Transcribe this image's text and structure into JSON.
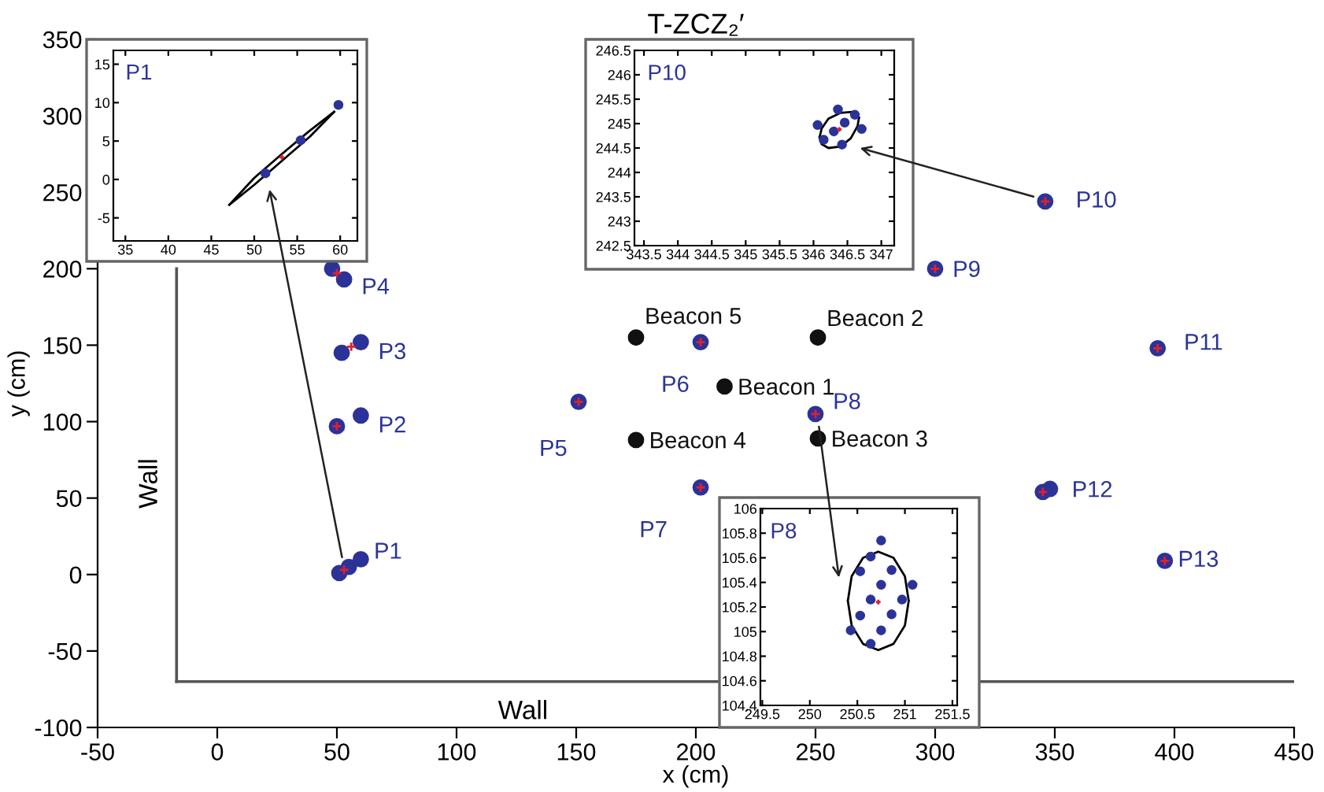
{
  "chart_data": [
    {
      "type": "scatter",
      "title": "T-ZCZ₂′",
      "xlabel": "x (cm)",
      "ylabel": "y (cm)",
      "xlim": [
        -50,
        450
      ],
      "ylim": [
        -100,
        350
      ],
      "xticks": [
        -50,
        0,
        50,
        100,
        150,
        200,
        250,
        300,
        350,
        400,
        450
      ],
      "yticks": [
        -100,
        -50,
        0,
        50,
        100,
        150,
        200,
        250,
        300,
        350
      ],
      "series": [
        {
          "type": "line",
          "name": "Wall",
          "color": "#555555",
          "marker": "none",
          "x": [
            -17,
            -17
          ],
          "values": [
            200,
            -70
          ]
        },
        {
          "type": "line",
          "name": "Wall",
          "color": "#555555",
          "marker": "none",
          "x": [
            -17,
            450
          ],
          "values": [
            -70,
            -70
          ]
        },
        {
          "type": "scatter",
          "color": "#2b3399",
          "marker": "circle",
          "x": [
            51,
            55,
            60,
            50,
            60,
            52,
            60,
            48,
            53,
            151,
            202,
            202,
            250,
            300,
            346,
            393,
            345,
            348,
            396
          ],
          "values": [
            1,
            5,
            10,
            97,
            104,
            145,
            152,
            200,
            193,
            113,
            152,
            57,
            105,
            200,
            244,
            148,
            54,
            56,
            9
          ]
        },
        {
          "type": "scatter",
          "color": "#e0202a",
          "marker": "cross",
          "x": [
            53,
            50,
            56,
            50,
            151,
            202,
            202,
            250,
            300,
            346,
            393,
            345,
            396
          ],
          "values": [
            3,
            97,
            149,
            197,
            113,
            152,
            57,
            105,
            200,
            244,
            148,
            54,
            9
          ]
        },
        {
          "type": "scatter",
          "color": "#111111",
          "marker": "circle",
          "x": [
            212,
            251,
            251,
            175,
            175
          ],
          "values": [
            123,
            155,
            89,
            88,
            155
          ]
        }
      ],
      "annotations": [
        {
          "text": "P1",
          "x": 60,
          "y": 10
        },
        {
          "text": "P2",
          "x": 60,
          "y": 104
        },
        {
          "text": "P3",
          "x": 60,
          "y": 152
        },
        {
          "text": "P4",
          "x": 53,
          "y": 193
        },
        {
          "text": "P5",
          "x": 151,
          "y": 113
        },
        {
          "text": "P6",
          "x": 202,
          "y": 152
        },
        {
          "text": "P7",
          "x": 202,
          "y": 57
        },
        {
          "text": "P8",
          "x": 250,
          "y": 105
        },
        {
          "text": "P9",
          "x": 300,
          "y": 200
        },
        {
          "text": "P10",
          "x": 346,
          "y": 244
        },
        {
          "text": "P11",
          "x": 393,
          "y": 148
        },
        {
          "text": "P12",
          "x": 348,
          "y": 56
        },
        {
          "text": "P13",
          "x": 396,
          "y": 9
        },
        {
          "text": "Beacon 1",
          "x": 212,
          "y": 123
        },
        {
          "text": "Beacon 2",
          "x": 251,
          "y": 155
        },
        {
          "text": "Beacon 3",
          "x": 251,
          "y": 89
        },
        {
          "text": "Beacon 4",
          "x": 175,
          "y": 88
        },
        {
          "text": "Beacon 5",
          "x": 175,
          "y": 155
        }
      ]
    },
    {
      "type": "scatter",
      "title": "P1",
      "xlim": [
        33.6,
        62
      ],
      "ylim": [
        -8,
        16.8
      ],
      "xticks": [
        35,
        40,
        45,
        50,
        55,
        60
      ],
      "yticks": [
        -5,
        0,
        5,
        10,
        15
      ],
      "series": [
        {
          "type": "line",
          "color": "#000000",
          "marker": "none",
          "x": [
            47.1,
            50,
            53.2,
            56.3,
            59.3
          ],
          "values": [
            -3.3,
            0.2,
            3.3,
            6.2,
            8.8
          ]
        },
        {
          "type": "line",
          "color": "#000000",
          "marker": "none",
          "x": [
            47.1,
            50,
            53.2,
            56.5,
            59.3
          ],
          "values": [
            -3.3,
            -0.7,
            2.4,
            5.6,
            8.8
          ]
        },
        {
          "type": "scatter",
          "color": "#2b3399",
          "marker": "circle",
          "x": [
            51.3,
            55.4,
            59.8
          ],
          "values": [
            0.8,
            5.1,
            9.7
          ]
        },
        {
          "type": "scatter",
          "color": "#e0202a",
          "marker": "cross",
          "x": [
            53.2
          ],
          "values": [
            2.9
          ]
        }
      ]
    },
    {
      "type": "scatter",
      "title": "P10",
      "xlim": [
        343.36,
        347.19
      ],
      "ylim": [
        242.5,
        246.5
      ],
      "xticks": [
        343.5,
        344,
        344.5,
        345,
        345.5,
        346,
        346.5,
        347
      ],
      "yticks": [
        242.5,
        243,
        243.5,
        244,
        244.5,
        245,
        245.5,
        246,
        246.5
      ],
      "series": [
        {
          "type": "line",
          "color": "#000000",
          "marker": "none",
          "x": [
            346.09,
            346.12,
            346.22,
            346.4,
            346.57,
            346.67
          ],
          "values": [
            244.72,
            244.9,
            245.1,
            245.22,
            245.24,
            245.12
          ]
        },
        {
          "type": "line",
          "color": "#000000",
          "marker": "none",
          "x": [
            346.09,
            346.12,
            346.22,
            346.4,
            346.55,
            346.65,
            346.67
          ],
          "values": [
            244.72,
            244.58,
            244.5,
            244.53,
            244.7,
            244.95,
            245.12
          ]
        },
        {
          "type": "scatter",
          "color": "#2b3399",
          "marker": "circle",
          "x": [
            346.3,
            346.46,
            346.61,
            346.71,
            346.42,
            346.15,
            346.06,
            346.36
          ],
          "values": [
            244.84,
            245.02,
            245.18,
            244.89,
            244.57,
            244.67,
            244.97,
            245.29
          ]
        },
        {
          "type": "scatter",
          "color": "#e0202a",
          "marker": "cross",
          "x": [
            346.38
          ],
          "values": [
            244.88
          ]
        }
      ]
    },
    {
      "type": "scatter",
      "title": "P8",
      "xlim": [
        249.48,
        251.55
      ],
      "ylim": [
        104.4,
        106
      ],
      "xticks": [
        249.5,
        250,
        250.5,
        251,
        251.5
      ],
      "yticks": [
        104.4,
        104.6,
        104.8,
        105,
        105.2,
        105.4,
        105.6,
        105.8,
        106
      ],
      "series": [
        {
          "type": "line",
          "color": "#000000",
          "marker": "none",
          "x": [
            250.4,
            250.44,
            250.56,
            250.72,
            250.88,
            251.0,
            251.04,
            null,
            250.4,
            250.44,
            250.56,
            250.72,
            250.88,
            251.0,
            251.04
          ],
          "values": [
            105.25,
            105.45,
            105.6,
            105.65,
            105.6,
            105.45,
            105.25,
            null,
            105.25,
            105.05,
            104.9,
            104.85,
            104.9,
            105.05,
            105.25
          ]
        },
        {
          "type": "scatter",
          "color": "#2b3399",
          "marker": "circle",
          "x": [
            250.64,
            250.53,
            250.86,
            250.75,
            250.64,
            250.97,
            250.86,
            250.53,
            250.75,
            250.43,
            250.64,
            250.75,
            251.08
          ],
          "values": [
            105.61,
            105.49,
            105.5,
            105.38,
            105.26,
            105.26,
            105.14,
            105.13,
            105.01,
            105.01,
            104.9,
            105.74,
            105.38
          ]
        },
        {
          "type": "scatter",
          "color": "#e0202a",
          "marker": "cross",
          "x": [
            250.72
          ],
          "values": [
            105.24
          ]
        }
      ]
    }
  ]
}
